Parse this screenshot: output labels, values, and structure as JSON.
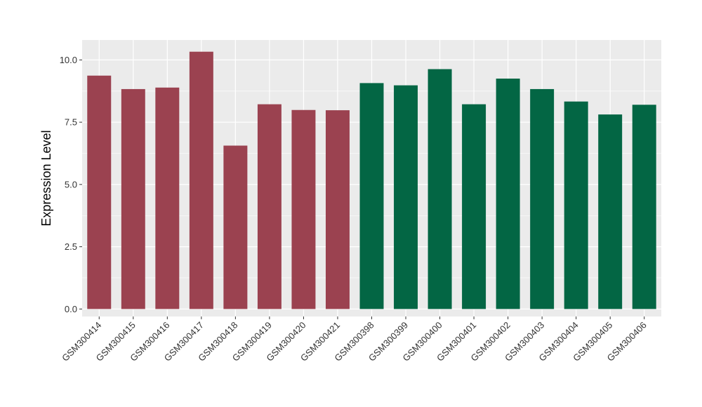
{
  "chart_data": {
    "type": "bar",
    "ylabel": "Expression Level",
    "xlabel": "",
    "ylim": [
      -0.3,
      10.8
    ],
    "yticks": [
      0.0,
      2.5,
      5.0,
      7.5,
      10.0
    ],
    "ytick_labels": [
      "0.0",
      "2.5",
      "5.0",
      "7.5",
      "10.0"
    ],
    "grid": true,
    "categories": [
      "GSM300414",
      "GSM300415",
      "GSM300416",
      "GSM300417",
      "GSM300418",
      "GSM300419",
      "GSM300420",
      "GSM300421",
      "GSM300398",
      "GSM300399",
      "GSM300400",
      "GSM300401",
      "GSM300402",
      "GSM300403",
      "GSM300404",
      "GSM300405",
      "GSM300406"
    ],
    "values": [
      9.37,
      8.83,
      8.89,
      10.33,
      6.56,
      8.22,
      7.99,
      7.98,
      9.07,
      8.98,
      9.63,
      8.22,
      9.25,
      8.83,
      8.33,
      7.81,
      8.2
    ],
    "bar_colors": [
      "#9b4250",
      "#9b4250",
      "#9b4250",
      "#9b4250",
      "#9b4250",
      "#9b4250",
      "#9b4250",
      "#9b4250",
      "#036644",
      "#036644",
      "#036644",
      "#036644",
      "#036644",
      "#036644",
      "#036644",
      "#036644",
      "#036644"
    ],
    "panel_background": "#ebebeb",
    "grid_color": "#ffffff"
  }
}
